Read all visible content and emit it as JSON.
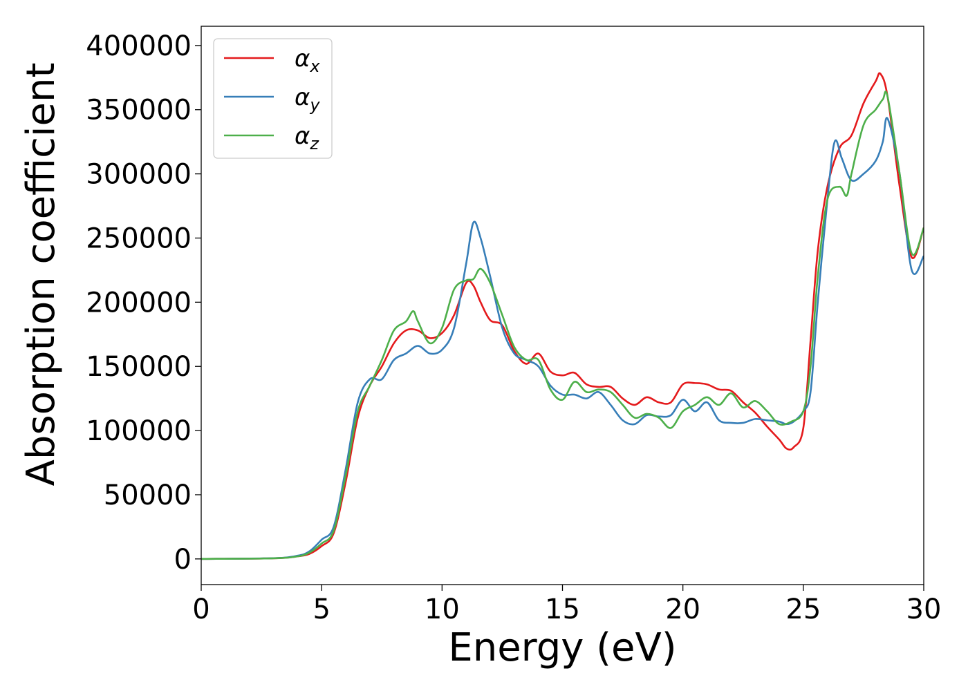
{
  "chart_data": {
    "type": "line",
    "title": "",
    "xlabel": "Energy (eV)",
    "ylabel": "Absorption coefficient",
    "xlim": [
      0,
      30
    ],
    "ylim": [
      -20000,
      415000
    ],
    "xticks": [
      0,
      5,
      10,
      15,
      20,
      25,
      30
    ],
    "xtick_labels": [
      "0",
      "5",
      "10",
      "15",
      "20",
      "25",
      "30"
    ],
    "yticks": [
      0,
      50000,
      100000,
      150000,
      200000,
      250000,
      300000,
      350000,
      400000
    ],
    "ytick_labels": [
      "0",
      "50000",
      "100000",
      "150000",
      "200000",
      "250000",
      "300000",
      "350000",
      "400000"
    ],
    "grid": false,
    "legend_position": "top-left",
    "series": [
      {
        "name": "α",
        "subscript": "x",
        "color": "#e41a1c",
        "x": [
          0,
          3,
          4,
          4.5,
          5,
          5.5,
          6,
          6.5,
          7,
          7.5,
          8,
          8.5,
          9,
          9.5,
          10,
          10.5,
          11,
          11.3,
          11.6,
          12,
          12.5,
          13,
          13.5,
          14,
          14.5,
          15,
          15.5,
          16,
          16.5,
          17,
          17.5,
          18,
          18.5,
          19,
          19.5,
          20,
          20.5,
          21,
          21.5,
          22,
          22.5,
          23,
          23.5,
          24,
          24.3,
          24.6,
          25,
          25.3,
          25.6,
          26,
          26.5,
          27,
          27.5,
          28,
          28.2,
          28.5,
          29,
          29.5,
          30
        ],
        "y": [
          0,
          500,
          2000,
          4000,
          10000,
          20000,
          60000,
          110000,
          135000,
          150000,
          168000,
          178000,
          178000,
          172000,
          176000,
          190000,
          215000,
          213000,
          200000,
          186000,
          182000,
          162000,
          152000,
          160000,
          146000,
          143000,
          145000,
          136000,
          134000,
          134000,
          125000,
          120000,
          126000,
          122000,
          122000,
          136000,
          137000,
          136000,
          132000,
          131000,
          122000,
          114000,
          103000,
          93000,
          86000,
          87000,
          102000,
          170000,
          240000,
          290000,
          320000,
          330000,
          355000,
          372000,
          378000,
          360000,
          290000,
          235000,
          258000
        ]
      },
      {
        "name": "α",
        "subscript": "y",
        "color": "#377eb8",
        "x": [
          0,
          3,
          4,
          4.5,
          5,
          5.5,
          6,
          6.5,
          7,
          7.5,
          8,
          8.5,
          9,
          9.5,
          10,
          10.5,
          11,
          11.3,
          11.6,
          12,
          12.5,
          13,
          13.5,
          14,
          14.5,
          15,
          15.5,
          16,
          16.5,
          17,
          17.5,
          18,
          18.5,
          19,
          19.5,
          20,
          20.5,
          21,
          21.5,
          22,
          22.5,
          23,
          23.5,
          24,
          24.3,
          24.6,
          25,
          25.3,
          25.6,
          26,
          26.3,
          26.6,
          27,
          27.5,
          28,
          28.3,
          28.5,
          29,
          29.5,
          30
        ],
        "y": [
          0,
          600,
          2500,
          6000,
          15000,
          25000,
          70000,
          122000,
          140000,
          140000,
          155000,
          160000,
          166000,
          160000,
          163000,
          180000,
          230000,
          262000,
          250000,
          220000,
          180000,
          160000,
          155000,
          150000,
          135000,
          128000,
          128000,
          125000,
          130000,
          120000,
          108000,
          105000,
          112000,
          111000,
          112000,
          124000,
          115000,
          122000,
          108000,
          106000,
          106000,
          109000,
          108000,
          107000,
          105000,
          107000,
          115000,
          130000,
          200000,
          280000,
          325000,
          312000,
          295000,
          300000,
          310000,
          325000,
          343000,
          300000,
          225000,
          236000
        ]
      },
      {
        "name": "α",
        "subscript": "z",
        "color": "#4daf4a",
        "x": [
          0,
          3,
          4,
          4.5,
          5,
          5.5,
          6,
          6.5,
          7,
          7.5,
          8,
          8.5,
          8.8,
          9,
          9.5,
          10,
          10.5,
          11,
          11.3,
          11.6,
          12,
          12.5,
          13,
          13.5,
          14,
          14.5,
          15,
          15.5,
          16,
          16.5,
          17,
          17.5,
          18,
          18.5,
          19,
          19.5,
          20,
          20.5,
          21,
          21.5,
          22,
          22.5,
          23,
          23.5,
          24,
          24.5,
          25,
          25.3,
          25.6,
          26,
          26.5,
          26.8,
          27,
          27.5,
          28,
          28.3,
          28.5,
          29,
          29.5,
          30
        ],
        "y": [
          0,
          500,
          2000,
          5000,
          12000,
          22000,
          65000,
          115000,
          135000,
          155000,
          178000,
          185000,
          193000,
          185000,
          168000,
          180000,
          210000,
          217000,
          218000,
          226000,
          215000,
          190000,
          165000,
          155000,
          155000,
          132000,
          124000,
          138000,
          130000,
          132000,
          130000,
          120000,
          110000,
          113000,
          110000,
          102000,
          115000,
          120000,
          126000,
          120000,
          129000,
          118000,
          123000,
          115000,
          105000,
          107000,
          115000,
          150000,
          220000,
          280000,
          290000,
          283000,
          300000,
          338000,
          350000,
          358000,
          360000,
          300000,
          238000,
          258000
        ]
      }
    ]
  }
}
